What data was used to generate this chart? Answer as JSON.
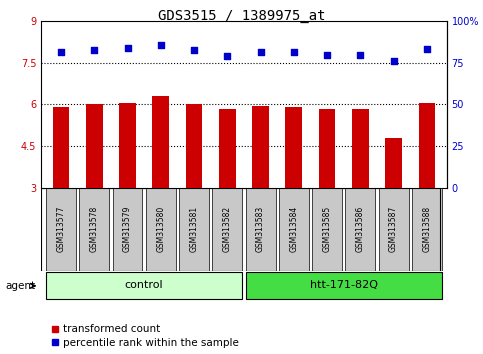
{
  "title": "GDS3515 / 1389975_at",
  "samples": [
    "GSM313577",
    "GSM313578",
    "GSM313579",
    "GSM313580",
    "GSM313581",
    "GSM313582",
    "GSM313583",
    "GSM313584",
    "GSM313585",
    "GSM313586",
    "GSM313587",
    "GSM313588"
  ],
  "bar_values": [
    5.9,
    6.0,
    6.05,
    6.3,
    6.0,
    5.85,
    5.95,
    5.9,
    5.85,
    5.85,
    4.8,
    6.05
  ],
  "dot_values": [
    7.9,
    7.95,
    8.05,
    8.15,
    7.95,
    7.75,
    7.9,
    7.9,
    7.8,
    7.8,
    7.55,
    8.0
  ],
  "ylim_left": [
    3,
    9
  ],
  "ylim_right": [
    0,
    100
  ],
  "yticks_left": [
    3,
    4.5,
    6,
    7.5,
    9
  ],
  "yticks_right": [
    0,
    25,
    50,
    75,
    100
  ],
  "ytick_labels_left": [
    "3",
    "4.5",
    "6",
    "7.5",
    "9"
  ],
  "ytick_labels_right": [
    "0",
    "25",
    "50",
    "75",
    "100%"
  ],
  "bar_color": "#cc0000",
  "dot_color": "#0000cc",
  "bar_width": 0.5,
  "groups": [
    {
      "label": "control",
      "start": 0,
      "end": 5,
      "color": "#ccffcc"
    },
    {
      "label": "htt-171-82Q",
      "start": 6,
      "end": 11,
      "color": "#44dd44"
    }
  ],
  "agent_label": "agent",
  "legend_bar_label": "transformed count",
  "legend_dot_label": "percentile rank within the sample",
  "hlines": [
    7.5,
    6.0,
    4.5
  ],
  "bg_color": "#ffffff",
  "plot_bg": "#ffffff",
  "label_bg": "#c8c8c8",
  "title_fontsize": 10,
  "axis_fontsize": 7,
  "legend_fontsize": 7.5,
  "sample_fontsize": 5.5,
  "group_fontsize": 8
}
